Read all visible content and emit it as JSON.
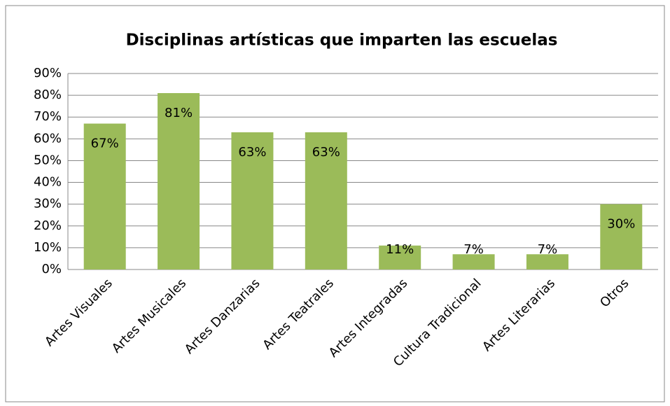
{
  "chart_data": {
    "type": "bar",
    "title": "Disciplinas artísticas que imparten las escuelas",
    "categories": [
      "Artes Visuales",
      "Artes Musicales",
      "Artes Danzarias",
      "Artes Teatrales",
      "Artes Integradas",
      "Cultura Tradicional",
      "Artes Literarias",
      "Otros"
    ],
    "values": [
      67,
      81,
      63,
      63,
      11,
      7,
      7,
      30
    ],
    "value_labels": [
      "67%",
      "81%",
      "63%",
      "63%",
      "11%",
      "7%",
      "7%",
      "30%"
    ],
    "color": "#9bbb59",
    "ylim": [
      0,
      90
    ],
    "yticks": [
      {
        "value": 0,
        "label": "0%"
      },
      {
        "value": 10,
        "label": "10%"
      },
      {
        "value": 20,
        "label": "20%"
      },
      {
        "value": 30,
        "label": "30%"
      },
      {
        "value": 40,
        "label": "40%"
      },
      {
        "value": 50,
        "label": "50%"
      },
      {
        "value": 60,
        "label": "60%"
      },
      {
        "value": 70,
        "label": "70%"
      },
      {
        "value": 80,
        "label": "80%"
      },
      {
        "value": 90,
        "label": "90%"
      }
    ],
    "grid": true
  }
}
